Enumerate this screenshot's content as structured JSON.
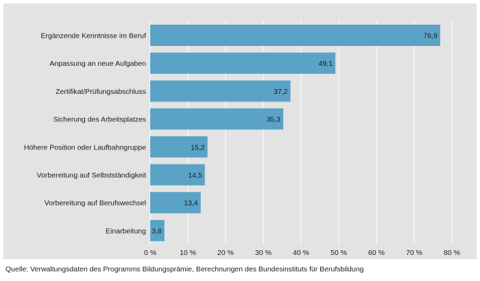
{
  "chart_data": {
    "type": "bar",
    "orientation": "horizontal",
    "categories": [
      "Ergänzende Kenntnisse im Beruf",
      "Anpassung an neue Aufgaben",
      "Zertifikat/Prüfungsabschluss",
      "Sicherung des Arbeitsplatzes",
      "Höhere Position oder Laufbahngruppe",
      "Vorbereitung auf Selbstständigkeit",
      "Vorbereitung auf Berufswechsel",
      "Einarbeitung"
    ],
    "values": [
      76.9,
      49.1,
      37.2,
      35.3,
      15.2,
      14.5,
      13.4,
      3.8
    ],
    "value_labels": [
      "76,9",
      "49,1",
      "37,2",
      "35,3",
      "15,2",
      "14,5",
      "13,4",
      "3,8"
    ],
    "xlim": [
      0,
      80
    ],
    "ticks": [
      0,
      10,
      20,
      30,
      40,
      50,
      60,
      70,
      80
    ],
    "tick_labels": [
      "0 %",
      "10 %",
      "20 %",
      "30 %",
      "40 %",
      "50 %",
      "60 %",
      "70 %",
      "80 %"
    ],
    "grid": true,
    "bar_color": "#5ba3c6",
    "background_color": "#e3e3e3",
    "grid_color": "#ffffff"
  },
  "source_text": "Quelle: Verwaltungsdaten des Programms Bildungsprämie, Berechnungen des Bundesinstituts für Berufsbildung"
}
